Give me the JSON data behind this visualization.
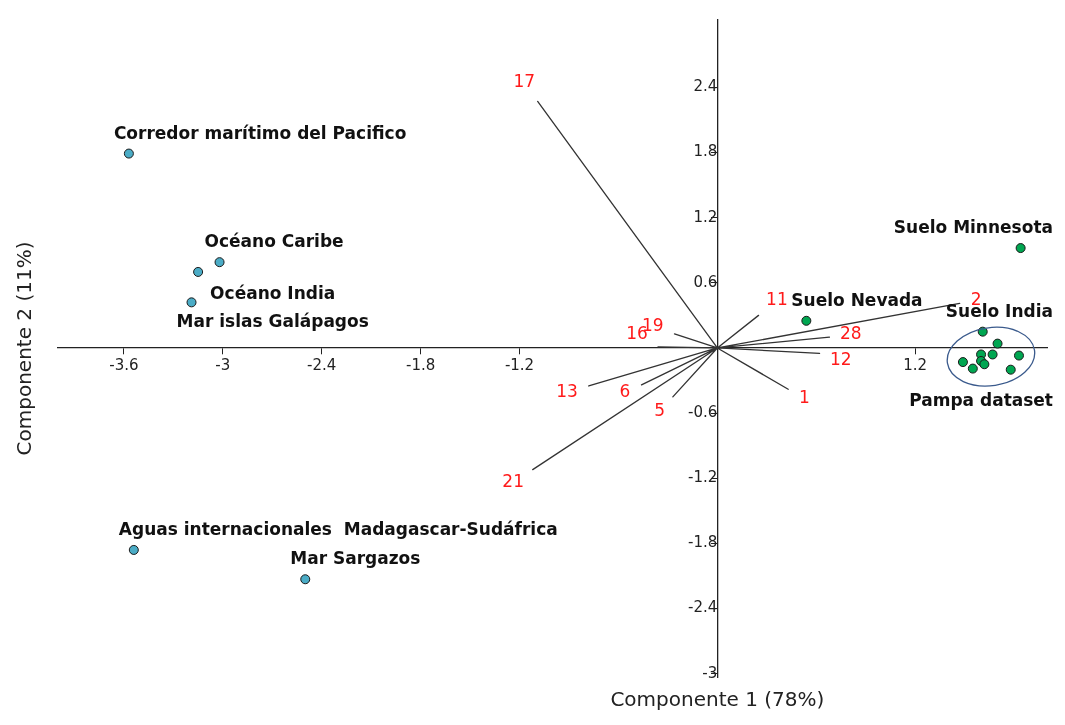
{
  "chart_data": {
    "type": "scatter",
    "xlabel": "Componente 1 (78%)",
    "ylabel": "Componente 2 (11%)",
    "xlim": [
      -4,
      2
    ],
    "ylim": [
      -3.03,
      3.02
    ],
    "xticks": [
      -3.6,
      -3,
      -2.4,
      -1.8,
      -1.2,
      1.2
    ],
    "yticks": [
      -3,
      -2.4,
      -1.8,
      -1.2,
      -0.6,
      0.6,
      1.2,
      1.8,
      2.4
    ],
    "grid": false,
    "legend": false,
    "marker": "circle",
    "series": [
      {
        "type": "scatter",
        "color": "#4bacc6",
        "x": [
          -3.57,
          -3.02,
          -3.15,
          -3.19,
          -3.54,
          -2.5
        ],
        "values": [
          1.79,
          0.79,
          0.7,
          0.42,
          -1.86,
          -2.13
        ]
      },
      {
        "type": "scatter",
        "color": "#00a651",
        "x": [
          1.84,
          0.54,
          1.61,
          1.7,
          1.6,
          1.67,
          1.83,
          1.49,
          1.6,
          1.62,
          1.55,
          1.78
        ],
        "values": [
          0.92,
          0.25,
          0.15,
          0.04,
          -0.06,
          -0.06,
          -0.07,
          -0.13,
          -0.12,
          -0.15,
          -0.19,
          -0.2
        ]
      },
      {
        "type": "line",
        "marker": "none",
        "color": "#333333",
        "x": [
          0,
          -1.09,
          null,
          0,
          1.47,
          null,
          0,
          0.25,
          null,
          0,
          -0.26,
          null,
          0,
          0.68,
          null,
          0,
          0.62,
          null,
          0,
          -0.36,
          null,
          0,
          -0.78,
          null,
          0,
          -0.46,
          null,
          0,
          -0.27,
          null,
          0,
          0.43,
          null,
          0,
          -1.12
        ],
        "values": [
          0,
          2.27,
          null,
          0,
          0.41,
          null,
          0,
          0.3,
          null,
          0,
          0.13,
          null,
          0,
          0.1,
          null,
          0,
          -0.05,
          null,
          0,
          0.01,
          null,
          0,
          -0.35,
          null,
          0,
          -0.34,
          null,
          0,
          -0.45,
          null,
          0,
          -0.38,
          null,
          0,
          -1.12
        ]
      }
    ],
    "annotations": [
      {
        "text": "Corredor marítimo del Pacifico",
        "x": -3.57,
        "y": 1.79
      },
      {
        "text": "Océano Caribe",
        "x": -3.02,
        "y": 0.79
      },
      {
        "text": "Océano India",
        "x": -3.15,
        "y": 0.7
      },
      {
        "text": "Mar islas Galápagos",
        "x": -3.19,
        "y": 0.42
      },
      {
        "text": "Aguas internacionales  Madagascar-Sudáfrica",
        "x": -3.54,
        "y": -1.86
      },
      {
        "text": "Mar Sargazos",
        "x": -2.5,
        "y": -2.13
      },
      {
        "text": "Suelo Minnesota",
        "x": 1.84,
        "y": 0.92
      },
      {
        "text": "Suelo Nevada",
        "x": 0.54,
        "y": 0.25
      },
      {
        "text": "Suelo India",
        "x": 1.61,
        "y": 0.15
      },
      {
        "text": "Pampa dataset",
        "x": 1.65,
        "y": -0.08
      },
      {
        "text": "17",
        "x": -1.09,
        "y": 2.27
      },
      {
        "text": "2",
        "x": 1.47,
        "y": 0.41
      },
      {
        "text": "11",
        "x": 0.25,
        "y": 0.3
      },
      {
        "text": "19",
        "x": -0.26,
        "y": 0.13
      },
      {
        "text": "28",
        "x": 0.68,
        "y": 0.1
      },
      {
        "text": "12",
        "x": 0.62,
        "y": -0.05
      },
      {
        "text": "16",
        "x": -0.36,
        "y": 0.01
      },
      {
        "text": "13",
        "x": -0.78,
        "y": -0.35
      },
      {
        "text": "6",
        "x": -0.46,
        "y": -0.34
      },
      {
        "text": "5",
        "x": -0.27,
        "y": -0.45
      },
      {
        "text": "1",
        "x": 0.43,
        "y": -0.38
      },
      {
        "text": "21",
        "x": -1.12,
        "y": -1.12
      }
    ]
  }
}
